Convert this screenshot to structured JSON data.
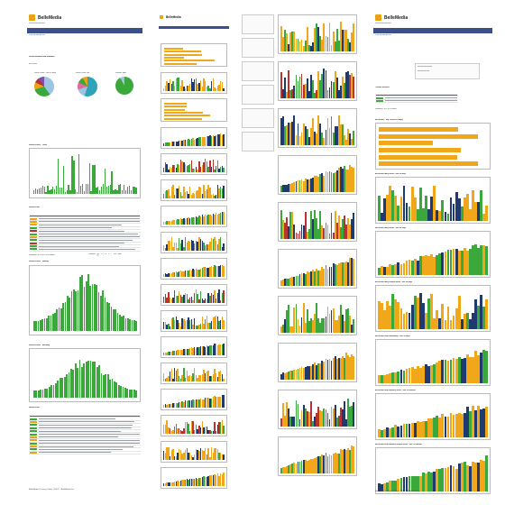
{
  "brand": {
    "name": "BelleMedia"
  },
  "nav_items": [
    "Home",
    "Marketing",
    "CB",
    "Media",
    "Rewards",
    "Status",
    "Settings",
    "Admin"
  ],
  "colors": {
    "nav": "#3b4f8a",
    "accent": "#e8a317",
    "bar_green": "#3aa83a",
    "bar_orange": "#f0a81a",
    "bar_navy": "#1e3a6e",
    "bar_red": "#b83232"
  },
  "page1": {
    "sections": [
      "Social Network Ad Rotation",
      "Social Plans - Total",
      "Social Plan",
      "Social Plans - Weekly",
      "Social Plans - Monthly",
      "Social Plan"
    ],
    "pies": [
      "Social Plans - Last 30 days",
      "Social Plans - All",
      "Visited Pages"
    ],
    "pager_text": "Showing 1 to 10 of 2,424 entries",
    "pager": [
      "Previous",
      "1",
      "2",
      "3",
      "4",
      "5",
      "...",
      "243",
      "Next"
    ],
    "footer": "BelleMedia | Privacy Policy | 2013 © BelleMedia Inc."
  },
  "page4": {
    "sections": [
      "Trends Results",
      "Ad results - Top 10 (last 30 days)",
      "Ad results daily views - last 30 days",
      "Ad results daily clicks - last 30 days",
      "Ad results daily unique views - last 30 days",
      "Ad results total reach/daily - last 30 days",
      "Ad results total monthly views - last 12 months",
      "Ad results total monthly unique views - last 12 months"
    ],
    "pager_text": "Showing 1 to 2 of 2 entries",
    "footer": "BelleMedia | Privacy Policy | 2013 © BelleMedia Inc."
  }
}
